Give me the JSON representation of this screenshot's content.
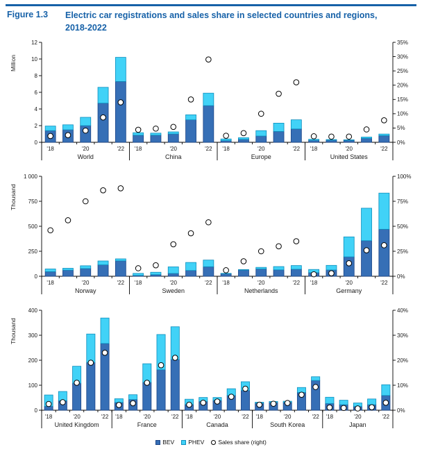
{
  "figure": {
    "label": "Figure 1.3",
    "title": "Electric car registrations and sales share in selected countries and regions, 2018-2022"
  },
  "colors": {
    "header_blue": "#1661a8",
    "bev": "#366fb6",
    "bev_border": "#1c4587",
    "phev": "#41d2f7",
    "phev_border": "#0d8ebd",
    "share_marker_fill": "#ffffff",
    "share_marker_stroke": "#000000",
    "axis": "#000000"
  },
  "legend": [
    {
      "label": "BEV",
      "marker": "square-bev"
    },
    {
      "label": "PHEV",
      "marker": "square-phev"
    },
    {
      "label": "Sales share (right)",
      "marker": "circle"
    }
  ],
  "chart_data": [
    {
      "type": "bar",
      "unit_label": "Million",
      "years": [
        "'18",
        "'19",
        "'20",
        "'21",
        "'22"
      ],
      "year_labels_shown": [
        "'18",
        "'20",
        "'22"
      ],
      "left_axis": {
        "max": 12,
        "tick_values": [
          0,
          2,
          4,
          6,
          8,
          10,
          12
        ],
        "tick_labels": [
          "0",
          "2",
          "4",
          "6",
          "8",
          "10",
          "12"
        ]
      },
      "right_axis": {
        "max": 35,
        "tick_values": [
          0,
          5,
          10,
          15,
          20,
          25,
          30,
          35
        ],
        "tick_labels": [
          "0%",
          "5%",
          "10%",
          "15%",
          "20%",
          "25%",
          "30%",
          "35%"
        ]
      },
      "groups": [
        {
          "name": "World",
          "bev": [
            1.4,
            1.5,
            2.0,
            4.7,
            7.3
          ],
          "phev": [
            0.55,
            0.6,
            1.0,
            1.9,
            2.9
          ],
          "share": [
            2.2,
            2.5,
            4.1,
            8.7,
            14
          ]
        },
        {
          "name": "China",
          "bev": [
            0.85,
            0.85,
            1.0,
            2.7,
            4.4
          ],
          "phev": [
            0.3,
            0.25,
            0.25,
            0.6,
            1.5
          ],
          "share": [
            4.4,
            4.8,
            5.4,
            15,
            29
          ]
        },
        {
          "name": "Europe",
          "bev": [
            0.2,
            0.35,
            0.75,
            1.3,
            1.6
          ],
          "phev": [
            0.2,
            0.2,
            0.65,
            1.0,
            1.1
          ],
          "share": [
            2.3,
            3.2,
            10,
            17,
            21
          ]
        },
        {
          "name": "United States",
          "bev": [
            0.24,
            0.25,
            0.24,
            0.47,
            0.8
          ],
          "phev": [
            0.12,
            0.08,
            0.06,
            0.16,
            0.19
          ],
          "share": [
            2.1,
            2.0,
            2.0,
            4.5,
            7.7
          ]
        }
      ]
    },
    {
      "type": "bar",
      "unit_label": "Thousand",
      "years": [
        "'18",
        "'19",
        "'20",
        "'21",
        "'22"
      ],
      "year_labels_shown": [
        "'18",
        "'20",
        "'22"
      ],
      "left_axis": {
        "max": 1000,
        "tick_values": [
          0,
          250,
          500,
          750,
          1000
        ],
        "tick_labels": [
          "0",
          "250",
          "500",
          "750",
          "1 000"
        ]
      },
      "right_axis": {
        "max": 100,
        "tick_values": [
          0,
          25,
          50,
          75,
          100
        ],
        "tick_labels": [
          "0%",
          "25%",
          "50%",
          "75%",
          "100%"
        ]
      },
      "groups": [
        {
          "name": "Norway",
          "bev": [
            46,
            61,
            77,
            114,
            154
          ],
          "phev": [
            27,
            19,
            28,
            39,
            20
          ],
          "share": [
            46,
            56,
            75,
            86,
            88
          ]
        },
        {
          "name": "Sweden",
          "bev": [
            8,
            16,
            28,
            58,
            95
          ],
          "phev": [
            21,
            24,
            66,
            80,
            67
          ],
          "share": [
            8,
            11,
            32,
            43,
            54
          ]
        },
        {
          "name": "Netherlands",
          "bev": [
            25,
            62,
            73,
            64,
            70
          ],
          "phev": [
            4,
            5,
            16,
            33,
            37
          ],
          "share": [
            6,
            15,
            25,
            30,
            35
          ]
        },
        {
          "name": "Germany",
          "bev": [
            36,
            63,
            194,
            356,
            470
          ],
          "phev": [
            32,
            46,
            200,
            325,
            362
          ],
          "share": [
            2,
            3,
            13,
            26,
            31
          ]
        }
      ]
    },
    {
      "type": "bar",
      "unit_label": "Thousand",
      "years": [
        "'18",
        "'19",
        "'20",
        "'21",
        "'22"
      ],
      "year_labels_shown": [
        "'18",
        "'20",
        "'22"
      ],
      "left_axis": {
        "max": 400,
        "tick_values": [
          0,
          100,
          200,
          300,
          400
        ],
        "tick_labels": [
          "0",
          "100",
          "200",
          "300",
          "400"
        ]
      },
      "right_axis": {
        "max": 40,
        "tick_values": [
          0,
          10,
          20,
          30,
          40
        ],
        "tick_labels": [
          "0%",
          "10%",
          "20%",
          "30%",
          "40%"
        ]
      },
      "groups": [
        {
          "name": "United Kingdom",
          "bev": [
            16,
            38,
            108,
            191,
            267
          ],
          "phev": [
            45,
            37,
            68,
            114,
            102
          ],
          "share": [
            2.5,
            3.2,
            11,
            19,
            23
          ]
        },
        {
          "name": "France",
          "bev": [
            31,
            43,
            111,
            162,
            203
          ],
          "phev": [
            15,
            19,
            75,
            141,
            131
          ],
          "share": [
            2.1,
            2.8,
            11,
            18,
            21
          ]
        },
        {
          "name": "Canada",
          "bev": [
            23,
            35,
            39,
            59,
            79
          ],
          "phev": [
            21,
            16,
            12,
            27,
            35
          ],
          "share": [
            2.2,
            3.0,
            3.5,
            5.4,
            8.6
          ]
        },
        {
          "name": "South Korea",
          "bev": [
            28,
            31,
            31,
            71,
            119
          ],
          "phev": [
            4,
            4,
            5,
            20,
            15
          ],
          "share": [
            2.2,
            2.6,
            2.9,
            6.2,
            9.3
          ]
        },
        {
          "name": "Japan",
          "bev": [
            27,
            22,
            15,
            22,
            59
          ],
          "phev": [
            25,
            18,
            14,
            23,
            43
          ],
          "share": [
            1.1,
            0.9,
            0.7,
            1.2,
            3.0
          ]
        }
      ]
    }
  ]
}
